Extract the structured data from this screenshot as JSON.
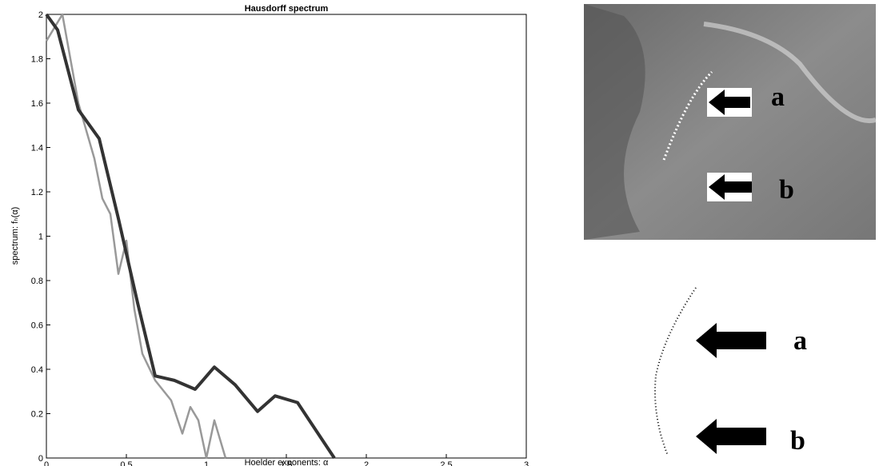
{
  "chart_data": {
    "type": "line",
    "title": "Hausdorff spectrum",
    "x_label": "Hoelder exponents: α",
    "y_label": "spectrum: fₕ(α)",
    "xlim": [
      0,
      3
    ],
    "xticks": [
      0,
      0.5,
      1,
      1.5,
      2,
      2.5,
      3
    ],
    "ylim": [
      0,
      2
    ],
    "yticks": [
      0,
      0.2,
      0.4,
      0.6,
      0.8,
      1,
      1.2,
      1.4,
      1.6,
      1.8,
      2
    ],
    "series": [
      {
        "color": "#999999",
        "x": [
          0,
          0.1,
          0.2,
          0.3,
          0.35,
          0.4,
          0.45,
          0.5,
          0.55,
          0.6,
          0.68,
          0.78,
          0.85,
          0.9,
          0.95,
          1,
          1.05,
          1.12
        ],
        "values": [
          1.88,
          2,
          1.6,
          1.35,
          1.17,
          1.1,
          0.83,
          0.98,
          0.67,
          0.47,
          0.35,
          0.26,
          0.11,
          0.23,
          0.17,
          0,
          0.17,
          0
        ]
      },
      {
        "color": "#333333",
        "x": [
          0,
          0.07,
          0.2,
          0.33,
          0.45,
          0.57,
          0.68,
          0.8,
          0.93,
          1.05,
          1.18,
          1.32,
          1.43,
          1.57,
          1.8
        ],
        "values": [
          2,
          1.93,
          1.57,
          1.44,
          1.08,
          0.7,
          0.37,
          0.35,
          0.31,
          0.41,
          0.33,
          0.21,
          0.28,
          0.25,
          0
        ]
      }
    ]
  },
  "images": [
    {
      "labels": [
        "a",
        "b"
      ]
    },
    {
      "labels": [
        "a",
        "b"
      ]
    }
  ]
}
